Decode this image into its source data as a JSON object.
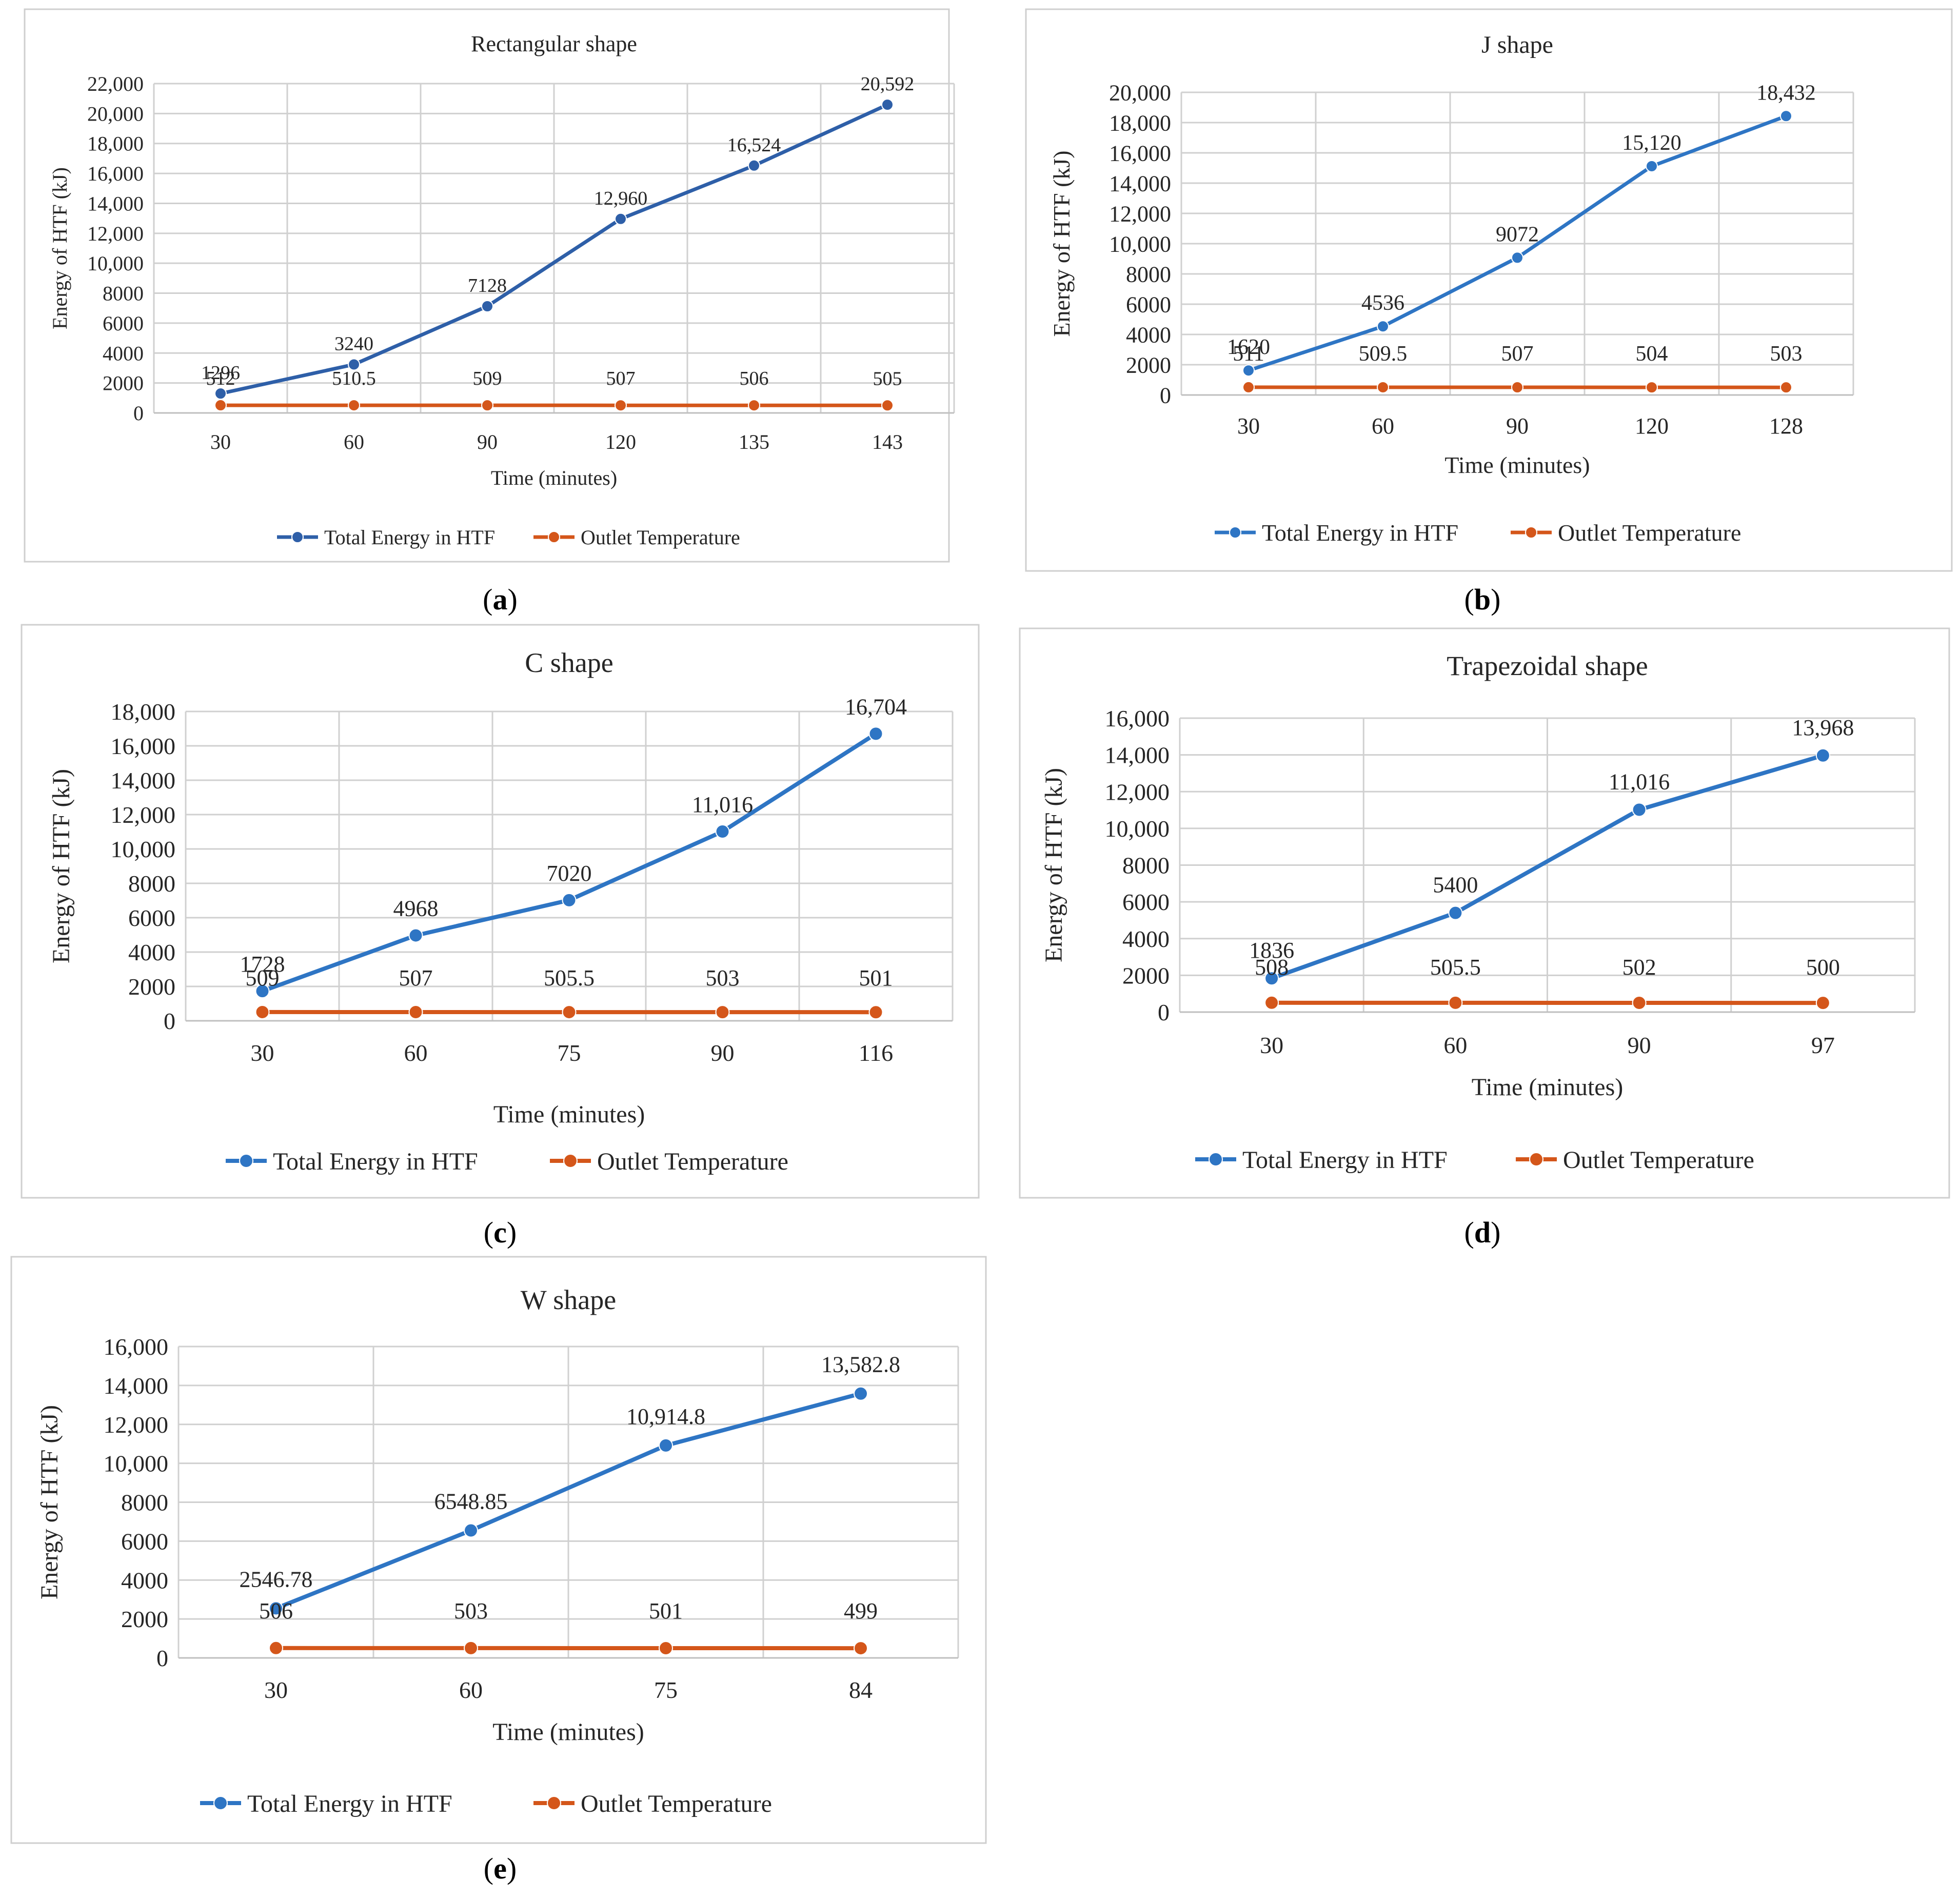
{
  "figure": {
    "panels": [
      {
        "id": "a",
        "caption_letter": "a",
        "chart_data": {
          "type": "line",
          "title": "Rectangular shape",
          "xlabel": "Time (minutes)",
          "ylabel": "Energy of HTF (kJ)",
          "categories": [
            "30",
            "60",
            "90",
            "120",
            "135",
            "143"
          ],
          "ylim": [
            0,
            22000
          ],
          "yticks": [
            0,
            2000,
            4000,
            6000,
            8000,
            10000,
            12000,
            14000,
            16000,
            18000,
            20000,
            22000
          ],
          "ytick_labels": [
            "0",
            "2000",
            "4000",
            "6000",
            "8000",
            "10,000",
            "12,000",
            "14,000",
            "16,000",
            "18,000",
            "20,000",
            "22,000"
          ],
          "grid": true,
          "legend_position": "bottom",
          "series": [
            {
              "name": "Total Energy in HTF",
              "color": "#2e5fa8",
              "values": [
                1296,
                3240,
                7128,
                12960,
                16524,
                20592
              ],
              "labels": [
                "1296",
                "3240",
                "7128",
                "12,960",
                "16,524",
                "20,592"
              ]
            },
            {
              "name": "Outlet Temperature",
              "color": "#d4561a",
              "values": [
                512,
                510.5,
                509,
                507,
                506,
                505
              ],
              "labels": [
                "512",
                "510.5",
                "509",
                "507",
                "506",
                "505"
              ]
            }
          ]
        }
      },
      {
        "id": "b",
        "caption_letter": "b",
        "chart_data": {
          "type": "line",
          "title": "J shape",
          "xlabel": "Time (minutes)",
          "ylabel": "Energy of HTF (kJ)",
          "categories": [
            "30",
            "60",
            "90",
            "120",
            "128"
          ],
          "ylim": [
            0,
            20000
          ],
          "yticks": [
            0,
            2000,
            4000,
            6000,
            8000,
            10000,
            12000,
            14000,
            16000,
            18000,
            20000
          ],
          "ytick_labels": [
            "0",
            "2000",
            "4000",
            "6000",
            "8000",
            "10,000",
            "12,000",
            "14,000",
            "16,000",
            "18,000",
            "20,000"
          ],
          "grid": true,
          "legend_position": "bottom",
          "series": [
            {
              "name": "Total Energy in HTF",
              "color": "#2e75c4",
              "values": [
                1620,
                4536,
                9072,
                15120,
                18432
              ],
              "labels": [
                "1620",
                "4536",
                "9072",
                "15,120",
                "18,432"
              ]
            },
            {
              "name": "Outlet Temperature",
              "color": "#d4561a",
              "values": [
                511,
                509.5,
                507,
                504,
                503
              ],
              "labels": [
                "511",
                "509.5",
                "507",
                "504",
                "503"
              ]
            }
          ]
        }
      },
      {
        "id": "c",
        "caption_letter": "c",
        "chart_data": {
          "type": "line",
          "title": "C shape",
          "xlabel": "Time (minutes)",
          "ylabel": "Energy of HTF (kJ)",
          "categories": [
            "30",
            "60",
            "75",
            "90",
            "116"
          ],
          "ylim": [
            0,
            18000
          ],
          "yticks": [
            0,
            2000,
            4000,
            6000,
            8000,
            10000,
            12000,
            14000,
            16000,
            18000
          ],
          "ytick_labels": [
            "0",
            "2000",
            "4000",
            "6000",
            "8000",
            "10,000",
            "12,000",
            "14,000",
            "16,000",
            "18,000"
          ],
          "grid": true,
          "legend_position": "bottom",
          "series": [
            {
              "name": "Total Energy in HTF",
              "color": "#2e75c4",
              "values": [
                1728,
                4968,
                7020,
                11016,
                16704
              ],
              "labels": [
                "1728",
                "4968",
                "7020",
                "11,016",
                "16,704"
              ]
            },
            {
              "name": "Outlet Temperature",
              "color": "#d4561a",
              "values": [
                509,
                507,
                505.5,
                503,
                501
              ],
              "labels": [
                "509",
                "507",
                "505.5",
                "503",
                "501"
              ]
            }
          ]
        }
      },
      {
        "id": "d",
        "caption_letter": "d",
        "chart_data": {
          "type": "line",
          "title": "Trapezoidal shape",
          "xlabel": "Time (minutes)",
          "ylabel": "Energy of HTF (kJ)",
          "categories": [
            "30",
            "60",
            "90",
            "97"
          ],
          "ylim": [
            0,
            16000
          ],
          "yticks": [
            0,
            2000,
            4000,
            6000,
            8000,
            10000,
            12000,
            14000,
            16000
          ],
          "ytick_labels": [
            "0",
            "2000",
            "4000",
            "6000",
            "8000",
            "10,000",
            "12,000",
            "14,000",
            "16,000"
          ],
          "grid": true,
          "legend_position": "bottom",
          "series": [
            {
              "name": "Total Energy in HTF",
              "color": "#2e75c4",
              "values": [
                1836,
                5400,
                11016,
                13968
              ],
              "labels": [
                "1836",
                "5400",
                "11,016",
                "13,968"
              ]
            },
            {
              "name": "Outlet Temperature",
              "color": "#d4561a",
              "values": [
                508,
                505.5,
                502,
                500
              ],
              "labels": [
                "508",
                "505.5",
                "502",
                "500"
              ]
            }
          ]
        }
      },
      {
        "id": "e",
        "caption_letter": "e",
        "chart_data": {
          "type": "line",
          "title": "W shape",
          "xlabel": "Time (minutes)",
          "ylabel": "Energy of HTF (kJ)",
          "categories": [
            "30",
            "60",
            "75",
            "84"
          ],
          "ylim": [
            0,
            16000
          ],
          "yticks": [
            0,
            2000,
            4000,
            6000,
            8000,
            10000,
            12000,
            14000,
            16000
          ],
          "ytick_labels": [
            "0",
            "2000",
            "4000",
            "6000",
            "8000",
            "10,000",
            "12,000",
            "14,000",
            "16,000"
          ],
          "grid": true,
          "legend_position": "bottom",
          "series": [
            {
              "name": "Total Energy in HTF",
              "color": "#2e75c4",
              "values": [
                2546.78,
                6548.85,
                10914.8,
                13582.8
              ],
              "labels": [
                "2546.78",
                "6548.85",
                "10,914.8",
                "13,582.8"
              ]
            },
            {
              "name": "Outlet Temperature",
              "color": "#d4561a",
              "values": [
                506,
                503,
                501,
                499
              ],
              "labels": [
                "506",
                "503",
                "501",
                "499"
              ]
            }
          ]
        }
      }
    ]
  }
}
